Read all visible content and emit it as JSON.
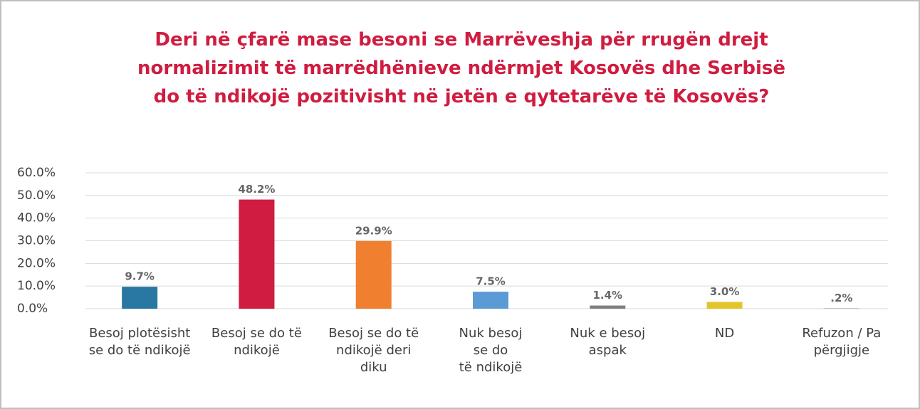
{
  "chart_data": {
    "type": "bar",
    "title": "Deri në çfarë mase besoni se Marrëveshja për rrugën drejt\nnormalizimit të marrëdhënieve ndërmjet Kosovës dhe Serbisë\ndo të ndikojë pozitivisht në jetën e qytetarëve të Kosovës?",
    "categories": [
      "Besoj plotësisht\nse do të ndikojë",
      "Besoj se do të\nndikojë",
      "Besoj se do të\nndikojë deri\ndiku",
      "Nuk besoj\nse do\ntë ndikojë",
      "Nuk e besoj\naspak",
      "ND",
      "Refuzon / Pa\npërgjigje"
    ],
    "values": [
      9.7,
      48.2,
      29.9,
      7.5,
      1.4,
      3.0,
      0.2
    ],
    "value_labels": [
      "9.7%",
      "48.2%",
      "29.9%",
      "7.5%",
      "1.4%",
      "3.0%",
      ".2%"
    ],
    "colors": [
      "#2878a3",
      "#d01c40",
      "#f07f30",
      "#5b9bd5",
      "#7f7f7f",
      "#e3c52a",
      "#a5a5a5"
    ],
    "ylim": [
      0,
      60
    ],
    "yticks": [
      {
        "value": 0,
        "label": "0.0%"
      },
      {
        "value": 10,
        "label": "10.0%"
      },
      {
        "value": 20,
        "label": "20.0%"
      },
      {
        "value": 30,
        "label": "30.0%"
      },
      {
        "value": 40,
        "label": "40.0%"
      },
      {
        "value": 50,
        "label": "50.0%"
      },
      {
        "value": 60,
        "label": "60.0%"
      }
    ],
    "grid": true
  }
}
